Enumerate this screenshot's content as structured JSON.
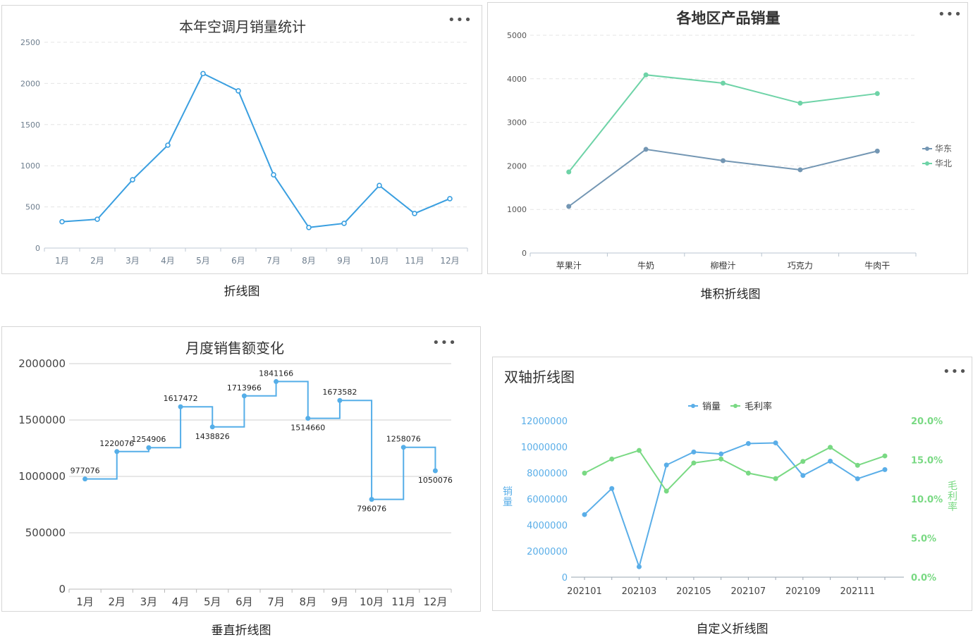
{
  "chart_data": [
    {
      "id": "c1",
      "type": "line",
      "title": "本年空调月销量统计",
      "caption": "折线图",
      "categories": [
        "1月",
        "2月",
        "3月",
        "4月",
        "5月",
        "6月",
        "7月",
        "8月",
        "9月",
        "10月",
        "11月",
        "12月"
      ],
      "series": [
        {
          "values": [
            320,
            350,
            830,
            1250,
            2120,
            1910,
            890,
            250,
            300,
            760,
            420,
            600
          ]
        }
      ],
      "yticks": [
        "0",
        "500",
        "1000",
        "1500",
        "2000",
        "2500"
      ],
      "ylim": [
        0,
        2500
      ],
      "grid": true,
      "colors": {
        "line": "#3a9fe0"
      },
      "menu_icon": "more-horizontal-icon"
    },
    {
      "id": "c2",
      "type": "line",
      "title": "各地区产品销量",
      "caption": "堆积折线图",
      "categories": [
        "苹果汁",
        "牛奶",
        "柳橙汁",
        "巧克力",
        "牛肉干"
      ],
      "series": [
        {
          "name": "华东",
          "values": [
            1070,
            2380,
            2120,
            1910,
            2340
          ],
          "color": "#7396b3"
        },
        {
          "name": "华北",
          "values": [
            1860,
            4090,
            3900,
            3440,
            3660
          ],
          "color": "#6ed3a7"
        }
      ],
      "yticks": [
        "0",
        "1000",
        "2000",
        "3000",
        "4000",
        "5000"
      ],
      "ylim": [
        0,
        5000
      ],
      "grid": true,
      "legend_position": "right",
      "menu_icon": "more-horizontal-icon"
    },
    {
      "id": "c3",
      "type": "line",
      "title": "月度销售额变化",
      "caption": "垂直折线图",
      "step": true,
      "categories": [
        "1月",
        "2月",
        "3月",
        "4月",
        "5月",
        "6月",
        "7月",
        "8月",
        "9月",
        "10月",
        "11月",
        "12月"
      ],
      "series": [
        {
          "values": [
            977076,
            1220076,
            1254906,
            1617472,
            1438826,
            1713966,
            1841166,
            1514660,
            1673582,
            796076,
            1258076,
            1050076
          ]
        }
      ],
      "data_labels": [
        "977076",
        "1220076",
        "1254906",
        "1617472",
        "1438826",
        "1713966",
        "1841166",
        "1514660",
        "1673582",
        "796076",
        "1258076",
        "1050076"
      ],
      "yticks": [
        "0",
        "500000",
        "1000000",
        "1500000",
        "2000000"
      ],
      "ylim": [
        0,
        2000000
      ],
      "grid": true,
      "colors": {
        "line": "#55aee8"
      },
      "menu_icon": "more-horizontal-icon"
    },
    {
      "id": "c4",
      "type": "line",
      "title": "双轴折线图",
      "caption": "自定义折线图",
      "x": [
        "202101",
        "202102",
        "202103",
        "202104",
        "202105",
        "202106",
        "202107",
        "202108",
        "202109",
        "202110",
        "202111",
        "202112"
      ],
      "xticks": [
        "202101",
        "202103",
        "202105",
        "202107",
        "202109",
        "202111"
      ],
      "series": [
        {
          "name": "销量",
          "axis": "left",
          "values": [
            4800000,
            6800000,
            800000,
            8600000,
            9600000,
            9450000,
            10250000,
            10300000,
            7800000,
            8900000,
            7550000,
            8250000
          ],
          "color": "#5aaee8"
        },
        {
          "name": "毛利率",
          "axis": "right",
          "values": [
            13.3,
            15.1,
            16.2,
            11.0,
            14.6,
            15.1,
            13.3,
            12.6,
            14.8,
            16.6,
            14.3,
            15.5
          ],
          "color": "#79d983"
        }
      ],
      "yticks_left": [
        "0",
        "2000000",
        "4000000",
        "6000000",
        "8000000",
        "10000000",
        "12000000"
      ],
      "yticks_right": [
        "0.0%",
        "5.0%",
        "10.0%",
        "15.0%",
        "20.0%"
      ],
      "ylim_left": [
        0,
        12000000
      ],
      "ylim_right": [
        0,
        20
      ],
      "ylabel_left": "销量",
      "ylabel_right": "毛利率",
      "legend_position": "top",
      "grid": false,
      "menu_icon": "more-horizontal-icon"
    }
  ]
}
